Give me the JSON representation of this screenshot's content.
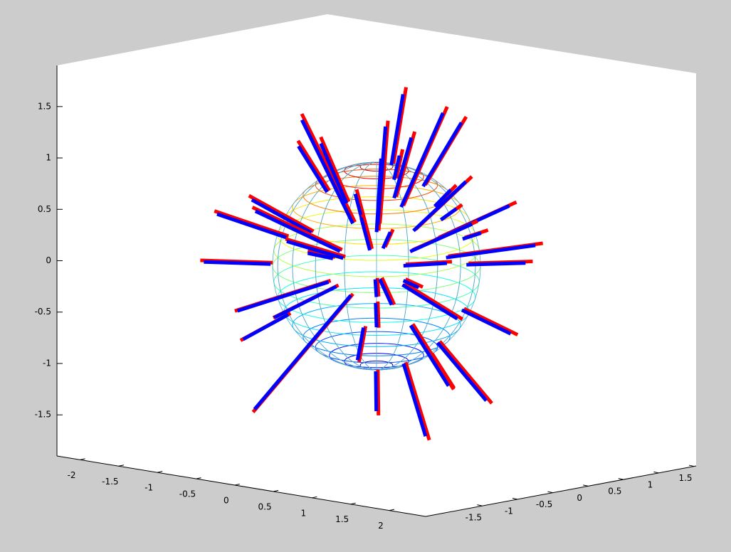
{
  "chart_data": {
    "type": "line3d",
    "xlim": [
      -2.3,
      2.47
    ],
    "xticks": [
      -2,
      -1.5,
      -1,
      -0.5,
      0,
      0.5,
      1,
      1.5,
      2
    ],
    "ylim": [
      -2.3,
      1.53
    ],
    "yticks": [
      -1.5,
      -1,
      -0.5,
      0,
      0.5,
      1,
      1.5
    ],
    "zlim": [
      -1.9,
      1.9
    ],
    "zticks": [
      -1.5,
      -1,
      -0.5,
      0,
      0.5,
      1,
      1.5
    ],
    "colors": [
      "#ff0000",
      "#0000ff"
    ]
  }
}
